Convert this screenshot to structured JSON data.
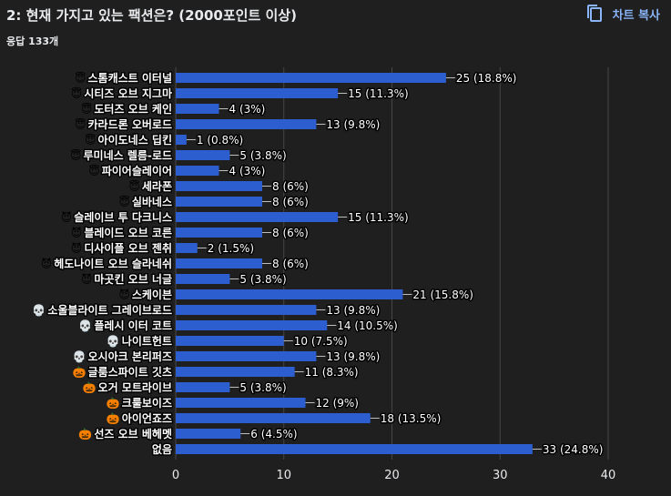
{
  "header": {
    "title": "2: 현재 가지고 있는 팩션은? (2000포인트 이상)",
    "responses": "응답 133개",
    "copy_label": "차트 복사",
    "copy_icon": "copy-icon"
  },
  "colors": {
    "bar": "#2c5ecf",
    "gridline": "#474747",
    "background": "#1f1f1f",
    "accent": "#8ab4f8"
  },
  "chart_data": {
    "type": "bar",
    "orientation": "horizontal",
    "categories": [
      {
        "label": "스톰캐스트 이터널",
        "emoji": "😇"
      },
      {
        "label": "시티즈 오브 지그마",
        "emoji": "😇"
      },
      {
        "label": "도터즈 오브 케인",
        "emoji": "😇"
      },
      {
        "label": "카라드론 오버로드",
        "emoji": "😇"
      },
      {
        "label": "아이도네스 딥킨",
        "emoji": "😇"
      },
      {
        "label": "루미네스 렐름-로드",
        "emoji": "😇"
      },
      {
        "label": "파이어슬레이어",
        "emoji": "😇"
      },
      {
        "label": "세라폰",
        "emoji": "😇"
      },
      {
        "label": "실바네스",
        "emoji": "😇"
      },
      {
        "label": "슬레이브 투 다크니스",
        "emoji": "😈"
      },
      {
        "label": "블레이드 오브 코른",
        "emoji": "😈"
      },
      {
        "label": "디사이플 오브 젠취",
        "emoji": "😈"
      },
      {
        "label": "헤도나이트 오브 슬라네쉬",
        "emoji": "😈"
      },
      {
        "label": "마곳킨 오브 너글",
        "emoji": "😈"
      },
      {
        "label": "스케이븐",
        "emoji": "😈"
      },
      {
        "label": "소울블라이트 그레이브로드",
        "emoji": "💀"
      },
      {
        "label": "플레시 이터 코트",
        "emoji": "💀"
      },
      {
        "label": "나이트헌트",
        "emoji": "💀"
      },
      {
        "label": "오시아크 본리퍼즈",
        "emoji": "💀"
      },
      {
        "label": "글룸스파이트 깃츠",
        "emoji": "🎃"
      },
      {
        "label": "오거 모트라이브",
        "emoji": "🎃"
      },
      {
        "label": "크룰보이즈",
        "emoji": "🎃"
      },
      {
        "label": "아이언죠즈",
        "emoji": "🎃"
      },
      {
        "label": "선즈 오브 베헤멧",
        "emoji": "🎃"
      },
      {
        "label": "없음",
        "emoji": ""
      }
    ],
    "values": [
      25,
      15,
      4,
      13,
      1,
      5,
      4,
      8,
      8,
      15,
      8,
      2,
      8,
      5,
      21,
      13,
      14,
      10,
      13,
      11,
      5,
      12,
      18,
      6,
      33
    ],
    "value_labels": [
      "25 (18.8%)",
      "15 (11.3%)",
      "4 (3%)",
      "13 (9.8%)",
      "1 (0.8%)",
      "5 (3.8%)",
      "4 (3%)",
      "8 (6%)",
      "8 (6%)",
      "15 (11.3%)",
      "8 (6%)",
      "2 (1.5%)",
      "8 (6%)",
      "5 (3.8%)",
      "21 (15.8%)",
      "13 (9.8%)",
      "14 (10.5%)",
      "10 (7.5%)",
      "13 (9.8%)",
      "11 (8.3%)",
      "5 (3.8%)",
      "12 (9%)",
      "18 (13.5%)",
      "6 (4.5%)",
      "33 (24.8%)"
    ],
    "xlim": [
      0,
      40
    ],
    "xticks": [
      "0",
      "10",
      "20",
      "30",
      "40"
    ],
    "grid": true
  }
}
